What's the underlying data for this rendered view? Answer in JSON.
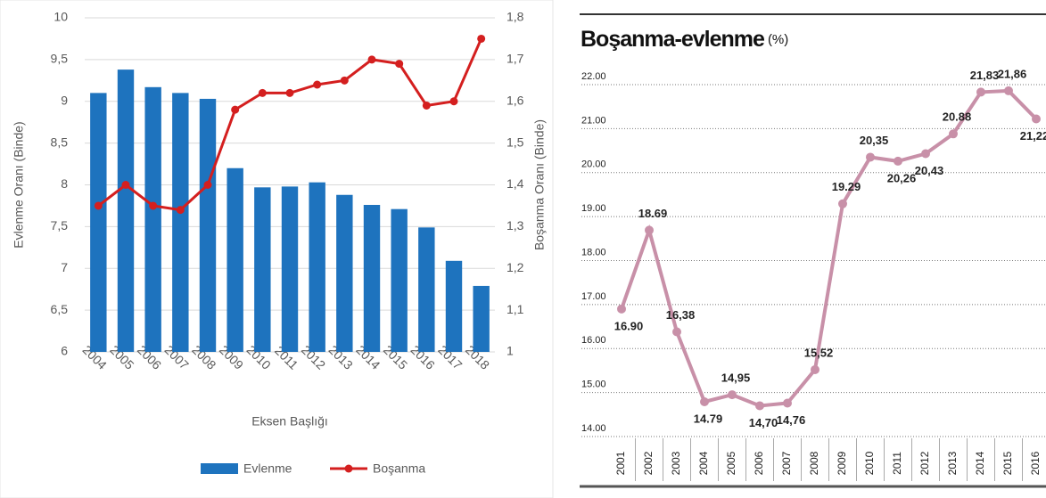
{
  "chart_data": [
    {
      "type": "bar",
      "categories": [
        "2004",
        "2005",
        "2006",
        "2007",
        "2008",
        "2009",
        "2010",
        "2011",
        "2012",
        "2013",
        "2014",
        "2015",
        "2016",
        "2017",
        "2018"
      ],
      "series": [
        {
          "name": "Evlenme",
          "color": "#1e73be",
          "values": [
            9.1,
            9.38,
            9.17,
            9.1,
            9.03,
            8.2,
            7.97,
            7.98,
            8.03,
            7.88,
            7.76,
            7.71,
            7.49,
            7.09,
            6.79
          ]
        },
        {
          "name": "Boşanma",
          "color": "#d41f1f",
          "axis": "y2",
          "type": "line",
          "values": [
            1.35,
            1.4,
            1.35,
            1.34,
            1.4,
            1.58,
            1.62,
            1.62,
            1.64,
            1.65,
            1.7,
            1.69,
            1.59,
            1.6,
            1.75
          ]
        }
      ],
      "ylabel": "Evlenme Oranı (Binde)",
      "y2label": "Boşanma Oranı (Binde)",
      "xlabel": "Eksen Başlığı",
      "ylim": [
        6,
        10
      ],
      "yticks": [
        6,
        {
          "value": 6.5,
          "label": "6,5"
        },
        7,
        {
          "value": 7.5,
          "label": "7,5"
        },
        8,
        {
          "value": 8.5,
          "label": "8,5"
        },
        9,
        {
          "value": 9.5,
          "label": "9,5"
        },
        10
      ],
      "y2lim": [
        1,
        1.8
      ],
      "y2ticks": [
        1,
        {
          "value": 1.1,
          "label": "1,1"
        },
        {
          "value": 1.2,
          "label": "1,2"
        },
        {
          "value": 1.3,
          "label": "1,3"
        },
        {
          "value": 1.4,
          "label": "1,4"
        },
        {
          "value": 1.5,
          "label": "1,5"
        },
        {
          "value": 1.6,
          "label": "1,6"
        },
        {
          "value": 1.7,
          "label": "1,7"
        },
        {
          "value": 1.8,
          "label": "1,8"
        }
      ],
      "grid": true,
      "legend": "bottom"
    },
    {
      "type": "line",
      "title": "Boşanma-evlenme",
      "subtitle": "(%)",
      "categories": [
        "2001",
        "2002",
        "2003",
        "2004",
        "2005",
        "2006",
        "2007",
        "2008",
        "2009",
        "2010",
        "2011",
        "2012",
        "2013",
        "2014",
        "2015",
        "2016"
      ],
      "values": [
        16.9,
        18.69,
        16.38,
        14.79,
        14.95,
        14.7,
        14.76,
        15.52,
        19.29,
        20.35,
        20.26,
        20.43,
        20.88,
        21.83,
        21.86,
        21.22
      ],
      "value_labels": [
        "16.90",
        "18.69",
        "16,38",
        "14.79",
        "14,95",
        "14,70",
        "14,76",
        "15,52",
        "19.29",
        "20,35",
        "20,26",
        "20,43",
        "20.88",
        "21,83",
        "21,86",
        "21,22"
      ],
      "color": "#c890a8",
      "ylim": [
        14,
        22
      ],
      "yticks": [
        {
          "value": 14,
          "label": "14.00"
        },
        {
          "value": 15,
          "label": "15.00"
        },
        {
          "value": 16,
          "label": "16.00"
        },
        {
          "value": 17,
          "label": "17.00"
        },
        {
          "value": 18,
          "label": "18.00"
        },
        {
          "value": 19,
          "label": "19.00"
        },
        {
          "value": 20,
          "label": "20.00"
        },
        {
          "value": 21,
          "label": "21.00"
        },
        {
          "value": 22,
          "label": "22.00"
        }
      ],
      "grid": true
    }
  ]
}
